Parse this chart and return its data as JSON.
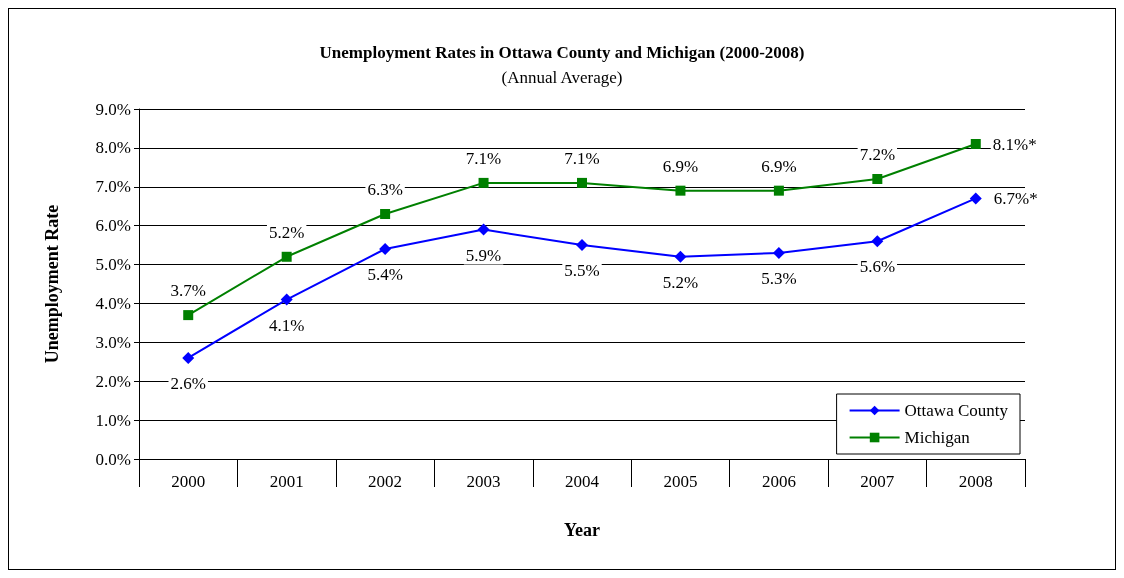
{
  "chart_data": {
    "type": "line",
    "title": "Unemployment Rates in Ottawa County and Michigan (2000-2008)",
    "subtitle": "(Annual Average)",
    "xlabel": "Year",
    "ylabel": "Unemployment Rate",
    "categories": [
      "2000",
      "2001",
      "2002",
      "2003",
      "2004",
      "2005",
      "2006",
      "2007",
      "2008"
    ],
    "series": [
      {
        "name": "Ottawa County",
        "color": "#0000ff",
        "marker": "diamond",
        "values": [
          2.6,
          4.1,
          5.4,
          5.9,
          5.5,
          5.2,
          5.3,
          5.6,
          6.7
        ],
        "value_labels": [
          "2.6%",
          "4.1%",
          "5.4%",
          "5.9%",
          "5.5%",
          "5.2%",
          "5.3%",
          "5.6%",
          "6.7%*"
        ]
      },
      {
        "name": "Michigan",
        "color": "#008000",
        "marker": "square",
        "values": [
          3.7,
          5.2,
          6.3,
          7.1,
          7.1,
          6.9,
          6.9,
          7.2,
          8.1
        ],
        "value_labels": [
          "3.7%",
          "5.2%",
          "6.3%",
          "7.1%",
          "7.1%",
          "6.9%",
          "6.9%",
          "7.2%",
          "8.1%*"
        ]
      }
    ],
    "ylim": [
      0,
      9
    ],
    "yticks": [
      {
        "value": 0,
        "label": "0.0%"
      },
      {
        "value": 1,
        "label": "1.0%"
      },
      {
        "value": 2,
        "label": "2.0%"
      },
      {
        "value": 3,
        "label": "3.0%"
      },
      {
        "value": 4,
        "label": "4.0%"
      },
      {
        "value": 5,
        "label": "5.0%"
      },
      {
        "value": 6,
        "label": "6.0%"
      },
      {
        "value": 7,
        "label": "7.0%"
      },
      {
        "value": 8,
        "label": "8.0%"
      },
      {
        "value": 9,
        "label": "9.0%"
      }
    ],
    "grid": "y",
    "legend": "bottom right",
    "line_style": "solid"
  }
}
